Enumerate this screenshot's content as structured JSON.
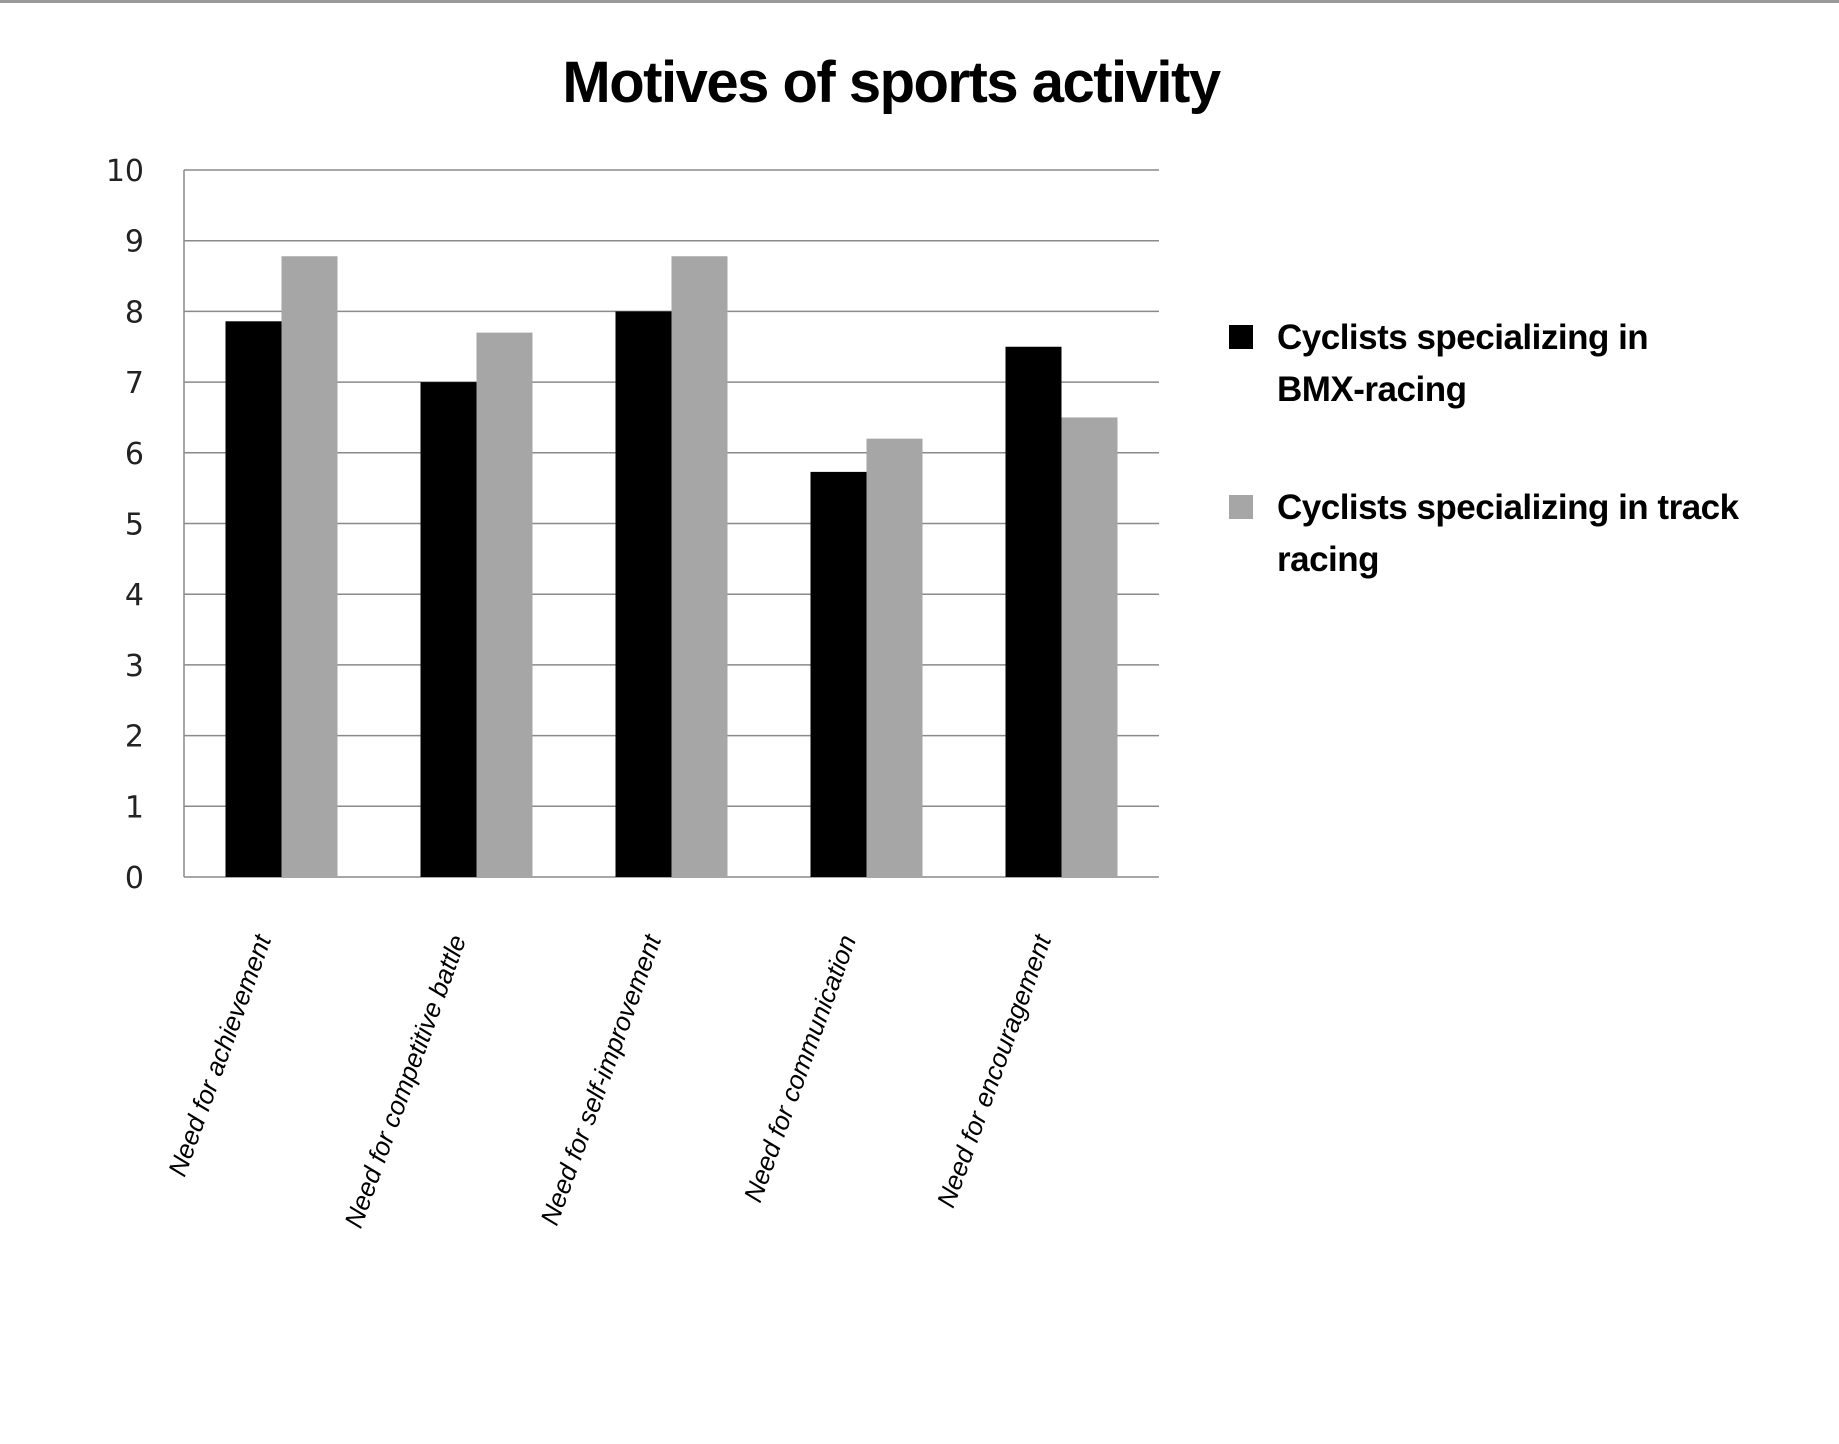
{
  "chart_data": {
    "type": "bar",
    "title": "Motives of sports activity",
    "xlabel": "",
    "ylabel": "",
    "ylim": [
      0,
      10
    ],
    "yticks": [
      "0",
      "1",
      "2",
      "3",
      "4",
      "5",
      "6",
      "7",
      "8",
      "9",
      "10"
    ],
    "grid": true,
    "legend_position": "right",
    "categories": [
      "Need for achievement",
      "Need for competitive battle",
      "Need for self-improvement",
      "Need for communication",
      "Need for encouragement"
    ],
    "series": [
      {
        "name": "Cyclists specializing in BMX-racing",
        "legend_lines": [
          "Cyclists specializing in",
          "BMX-racing"
        ],
        "color": "#000000",
        "values": [
          7.86,
          7.0,
          8.0,
          5.73,
          7.5
        ]
      },
      {
        "name": "Cyclists specializing in track racing",
        "legend_lines": [
          "Cyclists specializing in track",
          "racing"
        ],
        "color": "#a6a6a6",
        "values": [
          8.78,
          7.7,
          8.78,
          6.2,
          6.5
        ]
      }
    ]
  }
}
